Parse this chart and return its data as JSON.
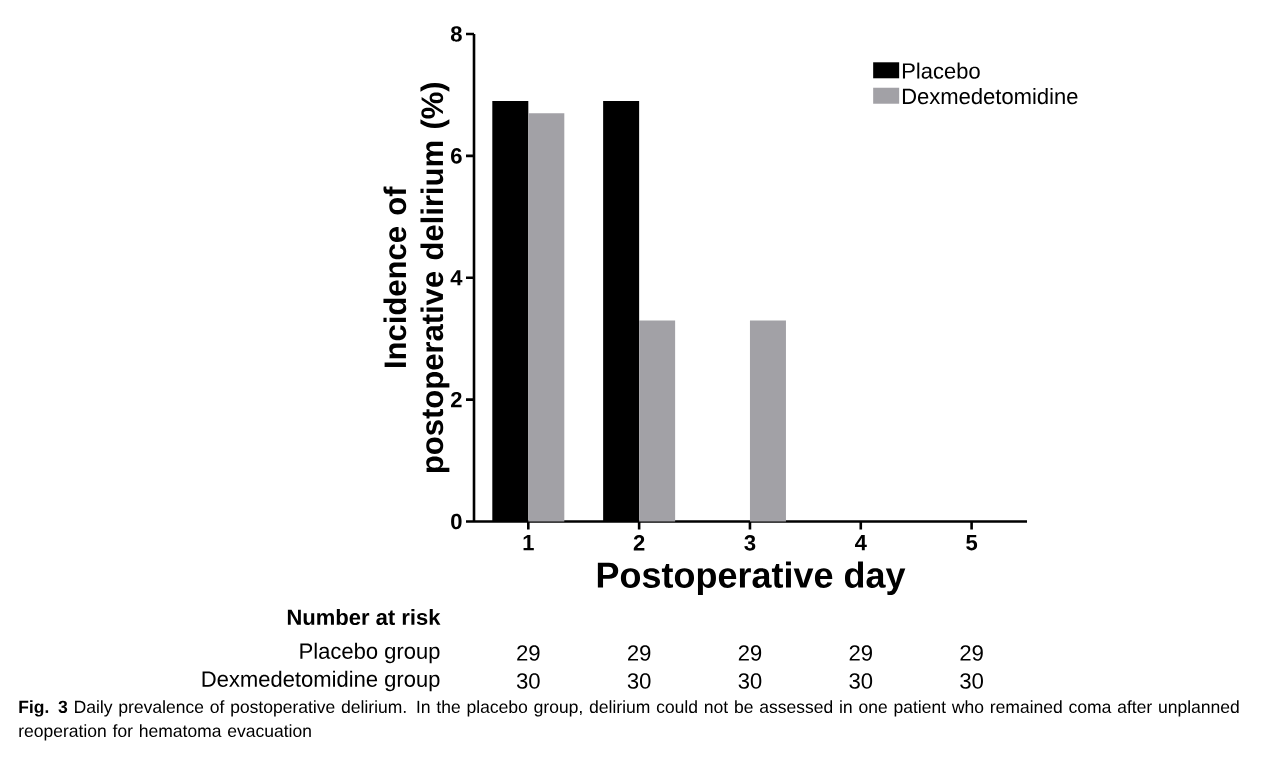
{
  "chart_data": {
    "type": "bar",
    "ylabel": "Incidence of postoperative delirium (%)",
    "xlabel": "Postoperative day",
    "categories": [
      "1",
      "2",
      "3",
      "4",
      "5"
    ],
    "series": [
      {
        "name": "Placebo",
        "color": "#000000",
        "values": [
          6.9,
          6.9,
          0,
          0,
          0
        ]
      },
      {
        "name": "Dexmedetomidine",
        "color": "#a2a1a6",
        "values": [
          6.7,
          3.3,
          3.3,
          0,
          0
        ]
      }
    ],
    "ylim": [
      0,
      8
    ],
    "yticks": [
      0,
      2,
      4,
      6,
      8
    ],
    "legend": "top right",
    "annotations": [
      "Number at risk",
      "Placebo group",
      "29",
      "29",
      "29",
      "29",
      "29",
      "Dexmedetomidine group",
      "30",
      "30",
      "30",
      "30",
      "30",
      "**Fig. 3** Daily prevalence of postoperative delirium. In the placebo group, delirium could not be assessed in one patient who remained coma after unplanned reoperation for hematoma evacuation"
    ]
  }
}
